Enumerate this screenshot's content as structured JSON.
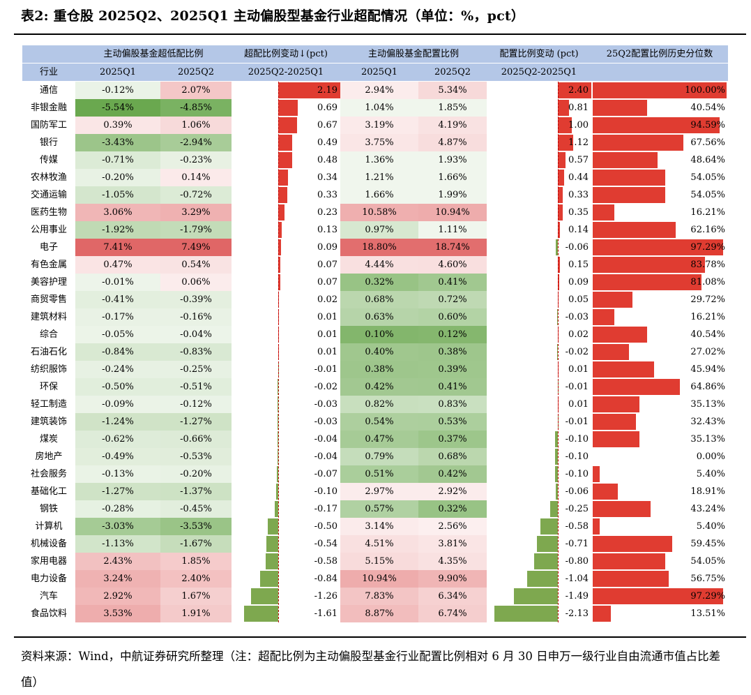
{
  "title": "表2: 重仓股 2025Q2、2025Q1 主动偏股型基金行业超配情况（单位：%，pct）",
  "header_top": [
    "",
    "主动偏股基金超低配比例",
    "超配比例变动↓(pct)",
    "主动偏股基金配置比例",
    "配置比例变动 (pct)",
    "25Q2配置比例历史分位数"
  ],
  "header_sub": [
    "行业",
    "2025Q1",
    "2025Q2",
    "2025Q2-2025Q1",
    "2025Q1",
    "2025Q2",
    "2025Q2-2025Q1",
    ""
  ],
  "colors": {
    "header_bg": "#b4c7e7",
    "bar_pos": "#e03c31",
    "bar_neg": "#7ea84f",
    "pos_cell": "#e06666",
    "neg_cell": "#6aa84f"
  },
  "chart_data": {
    "type": "table",
    "columns": [
      "行业",
      "超低配比例 2025Q1",
      "超低配比例 2025Q2",
      "超配比例变动",
      "配置比例 2025Q1",
      "配置比例 2025Q2",
      "配置比例变动",
      "25Q2配置比例历史分位数"
    ],
    "rows": [
      [
        "通信",
        "-0.12%",
        "2.07%",
        "2.19",
        "2.94%",
        "5.34%",
        "2.40",
        "100.00%"
      ],
      [
        "非银金融",
        "-5.54%",
        "-4.85%",
        "0.69",
        "1.04%",
        "1.85%",
        "0.81",
        "40.54%"
      ],
      [
        "国防军工",
        "0.39%",
        "1.06%",
        "0.67",
        "3.19%",
        "4.19%",
        "1.00",
        "94.59%"
      ],
      [
        "银行",
        "-3.43%",
        "-2.94%",
        "0.49",
        "3.75%",
        "4.87%",
        "1.12",
        "67.56%"
      ],
      [
        "传媒",
        "-0.71%",
        "-0.23%",
        "0.48",
        "1.36%",
        "1.93%",
        "0.57",
        "48.64%"
      ],
      [
        "农林牧渔",
        "-0.20%",
        "0.14%",
        "0.34",
        "1.21%",
        "1.66%",
        "0.44",
        "54.05%"
      ],
      [
        "交通运输",
        "-1.05%",
        "-0.72%",
        "0.33",
        "1.66%",
        "1.99%",
        "0.33",
        "54.05%"
      ],
      [
        "医药生物",
        "3.06%",
        "3.29%",
        "0.23",
        "10.58%",
        "10.94%",
        "0.35",
        "16.21%"
      ],
      [
        "公用事业",
        "-1.92%",
        "-1.79%",
        "0.13",
        "0.97%",
        "1.11%",
        "0.14",
        "62.16%"
      ],
      [
        "电子",
        "7.41%",
        "7.49%",
        "0.09",
        "18.80%",
        "18.74%",
        "-0.06",
        "97.29%"
      ],
      [
        "有色金属",
        "0.47%",
        "0.54%",
        "0.07",
        "4.44%",
        "4.60%",
        "0.15",
        "83.78%"
      ],
      [
        "美容护理",
        "-0.01%",
        "0.06%",
        "0.07",
        "0.32%",
        "0.41%",
        "0.09",
        "81.08%"
      ],
      [
        "商贸零售",
        "-0.41%",
        "-0.39%",
        "0.02",
        "0.68%",
        "0.72%",
        "0.05",
        "29.72%"
      ],
      [
        "建筑材料",
        "-0.17%",
        "-0.16%",
        "0.01",
        "0.63%",
        "0.60%",
        "-0.03",
        "16.21%"
      ],
      [
        "综合",
        "-0.05%",
        "-0.04%",
        "0.01",
        "0.10%",
        "0.12%",
        "0.02",
        "40.54%"
      ],
      [
        "石油石化",
        "-0.84%",
        "-0.83%",
        "0.01",
        "0.40%",
        "0.38%",
        "-0.02",
        "27.02%"
      ],
      [
        "纺织服饰",
        "-0.24%",
        "-0.25%",
        "-0.01",
        "0.38%",
        "0.39%",
        "0.01",
        "45.94%"
      ],
      [
        "环保",
        "-0.50%",
        "-0.51%",
        "-0.02",
        "0.42%",
        "0.41%",
        "-0.01",
        "64.86%"
      ],
      [
        "轻工制造",
        "-0.09%",
        "-0.12%",
        "-0.03",
        "0.82%",
        "0.83%",
        "0.01",
        "35.13%"
      ],
      [
        "建筑装饰",
        "-1.24%",
        "-1.27%",
        "-0.03",
        "0.54%",
        "0.53%",
        "-0.01",
        "32.43%"
      ],
      [
        "煤炭",
        "-0.62%",
        "-0.66%",
        "-0.04",
        "0.47%",
        "0.37%",
        "-0.10",
        "35.13%"
      ],
      [
        "房地产",
        "-0.49%",
        "-0.53%",
        "-0.04",
        "0.79%",
        "0.68%",
        "-0.10",
        "0.00%"
      ],
      [
        "社会服务",
        "-0.13%",
        "-0.20%",
        "-0.07",
        "0.51%",
        "0.42%",
        "-0.10",
        "5.40%"
      ],
      [
        "基础化工",
        "-1.27%",
        "-1.37%",
        "-0.10",
        "2.97%",
        "2.92%",
        "-0.06",
        "18.91%"
      ],
      [
        "钢铁",
        "-0.28%",
        "-0.45%",
        "-0.17",
        "0.57%",
        "0.32%",
        "-0.25",
        "43.24%"
      ],
      [
        "计算机",
        "-3.03%",
        "-3.53%",
        "-0.50",
        "3.14%",
        "2.56%",
        "-0.58",
        "5.40%"
      ],
      [
        "机械设备",
        "-1.13%",
        "-1.67%",
        "-0.54",
        "4.51%",
        "3.81%",
        "-0.71",
        "59.45%"
      ],
      [
        "家用电器",
        "2.43%",
        "1.85%",
        "-0.58",
        "5.15%",
        "4.35%",
        "-0.80",
        "54.05%"
      ],
      [
        "电力设备",
        "3.24%",
        "2.40%",
        "-0.84",
        "10.94%",
        "9.90%",
        "-1.04",
        "56.75%"
      ],
      [
        "汽车",
        "2.92%",
        "1.67%",
        "-1.26",
        "7.83%",
        "6.34%",
        "-1.49",
        "97.29%"
      ],
      [
        "食品饮料",
        "3.53%",
        "1.91%",
        "-1.61",
        "8.87%",
        "6.74%",
        "-2.13",
        "13.51%"
      ]
    ]
  },
  "source": "资料来源：Wind，中航证券研究所整理（注：超配比例为主动偏股型基金行业配置比例相对 6 月 30 日申万一级行业自由流通市值占比差值）"
}
